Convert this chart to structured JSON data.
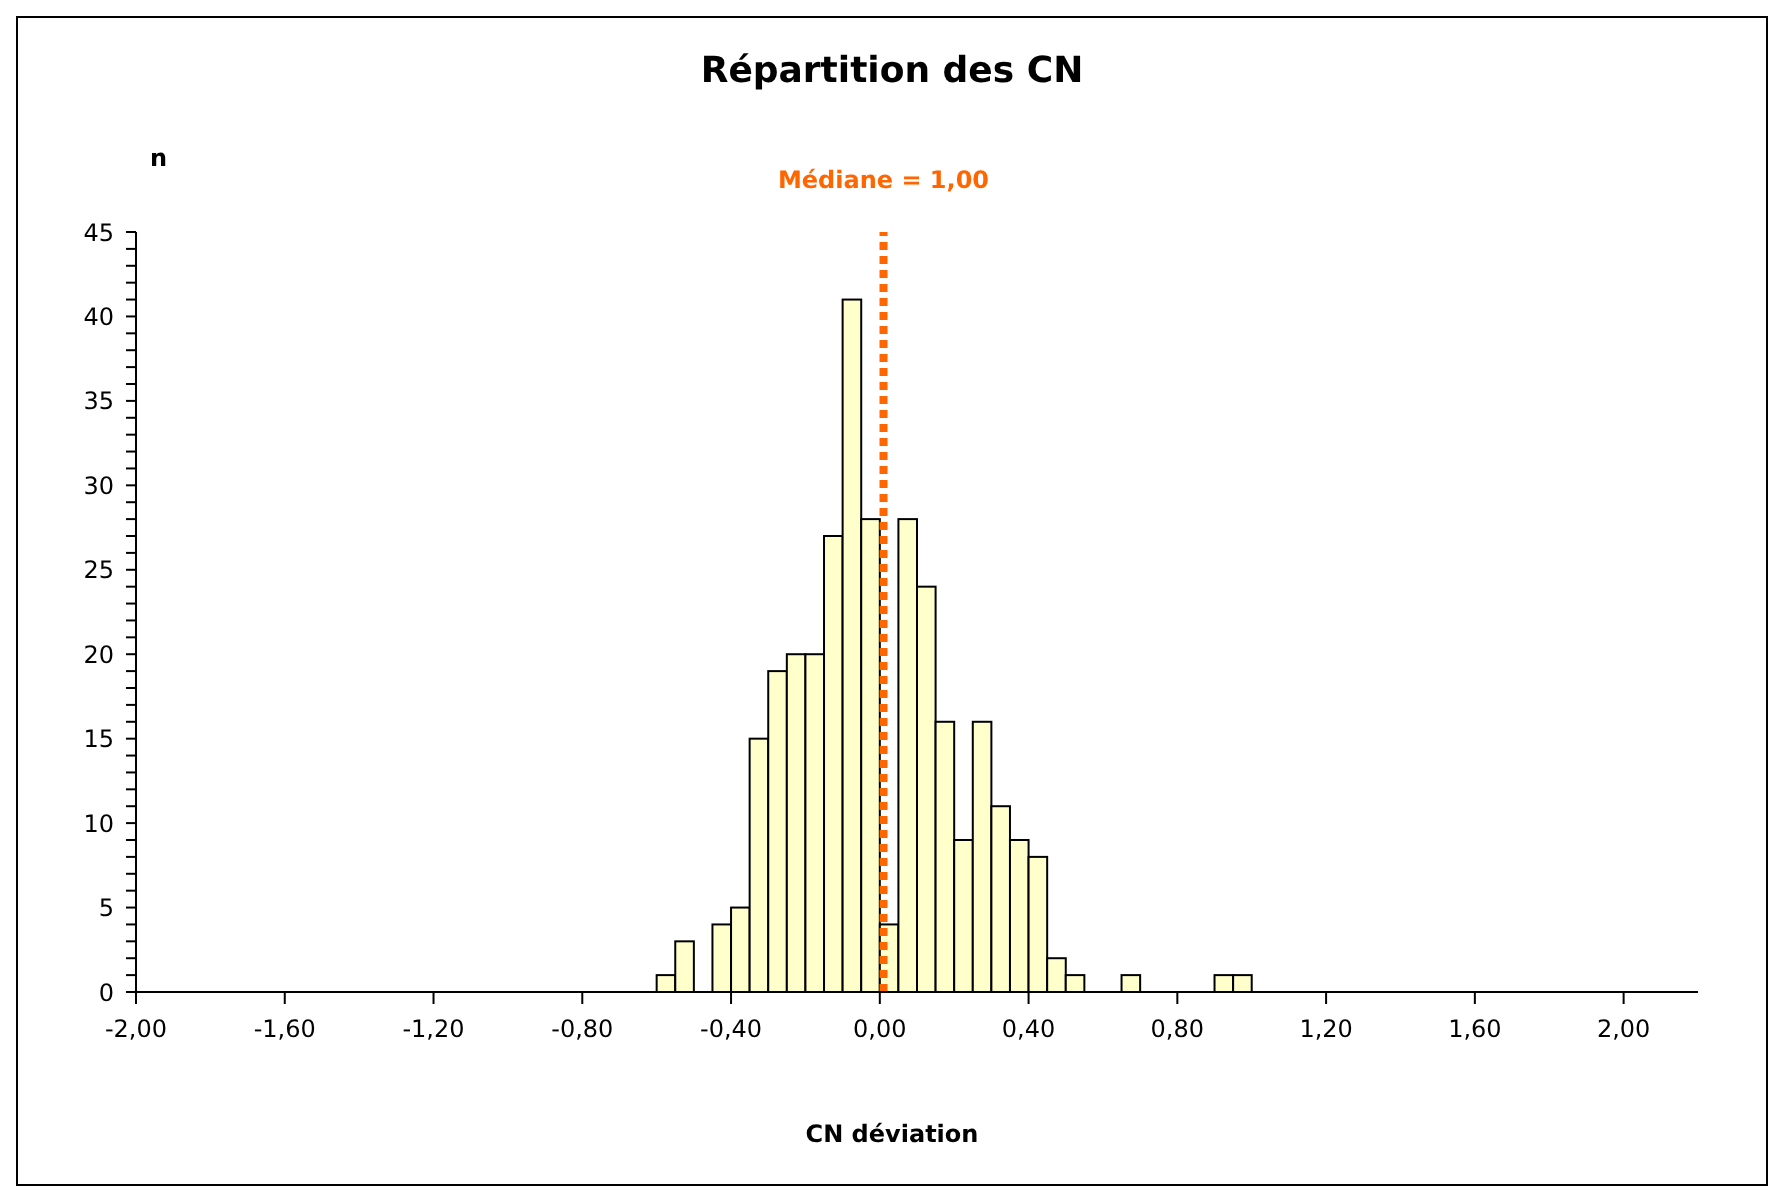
{
  "chart_data": {
    "type": "histogram",
    "title": "Répartition des CN",
    "xlabel": "CN déviation",
    "ylabel": "n",
    "bins": [
      -0.6,
      -0.55,
      -0.5,
      -0.45,
      -0.4,
      -0.35,
      -0.3,
      -0.25,
      -0.2,
      -0.15,
      -0.1,
      -0.05,
      0,
      0.05,
      0.1,
      0.15,
      0.2,
      0.25,
      0.3,
      0.35,
      0.4,
      0.45,
      0.5,
      0.55,
      0.6,
      0.65,
      0.7,
      0.75,
      0.8,
      0.85,
      0.9,
      0.95,
      1.0
    ],
    "values": [
      1,
      3,
      0,
      4,
      5,
      15,
      19,
      20,
      20,
      27,
      41,
      28,
      4,
      28,
      24,
      16,
      9,
      16,
      11,
      9,
      8,
      2,
      1,
      0,
      0,
      1,
      0,
      0,
      0,
      0,
      1,
      1
    ],
    "color": "#ffffcc",
    "xlim": [
      -2,
      2.2
    ],
    "xticks": [
      {
        "value": -2,
        "label": "-2,00"
      },
      {
        "value": -1.6,
        "label": "-1,60"
      },
      {
        "value": -1.2,
        "label": "-1,20"
      },
      {
        "value": -0.8,
        "label": "-0,80"
      },
      {
        "value": -0.4,
        "label": "-0,40"
      },
      {
        "value": 0,
        "label": "0,00"
      },
      {
        "value": 0.4,
        "label": "0,40"
      },
      {
        "value": 0.8,
        "label": "0,80"
      },
      {
        "value": 1.2,
        "label": "1,20"
      },
      {
        "value": 1.6,
        "label": "1,60"
      },
      {
        "value": 2,
        "label": "2,00"
      }
    ],
    "ylim": [
      0,
      45
    ],
    "yticks": [
      0,
      {
        "value": 1,
        "label": null
      },
      {
        "value": 2,
        "label": null
      },
      {
        "value": 3,
        "label": null
      },
      {
        "value": 4,
        "label": null
      },
      5,
      {
        "value": 6,
        "label": null
      },
      {
        "value": 7,
        "label": null
      },
      {
        "value": 8,
        "label": null
      },
      {
        "value": 9,
        "label": null
      },
      10,
      {
        "value": 11,
        "label": null
      },
      {
        "value": 12,
        "label": null
      },
      {
        "value": 13,
        "label": null
      },
      {
        "value": 14,
        "label": null
      },
      15,
      {
        "value": 16,
        "label": null
      },
      {
        "value": 17,
        "label": null
      },
      {
        "value": 18,
        "label": null
      },
      {
        "value": 19,
        "label": null
      },
      20,
      {
        "value": 21,
        "label": null
      },
      {
        "value": 22,
        "label": null
      },
      {
        "value": 23,
        "label": null
      },
      {
        "value": 24,
        "label": null
      },
      25,
      {
        "value": 26,
        "label": null
      },
      {
        "value": 27,
        "label": null
      },
      {
        "value": 28,
        "label": null
      },
      {
        "value": 29,
        "label": null
      },
      30,
      {
        "value": 31,
        "label": null
      },
      {
        "value": 32,
        "label": null
      },
      {
        "value": 33,
        "label": null
      },
      {
        "value": 34,
        "label": null
      },
      35,
      {
        "value": 36,
        "label": null
      },
      {
        "value": 37,
        "label": null
      },
      {
        "value": 38,
        "label": null
      },
      {
        "value": 39,
        "label": null
      },
      40,
      {
        "value": 41,
        "label": null
      },
      {
        "value": 42,
        "label": null
      },
      {
        "value": 43,
        "label": null
      },
      {
        "value": 44,
        "label": null
      },
      45
    ],
    "ref_lines": [
      {
        "axis": "x",
        "value": 0.01,
        "label": "Médiane = 1,00",
        "color": "#ff6600",
        "line_style": "dotted"
      }
    ],
    "grid": false
  }
}
